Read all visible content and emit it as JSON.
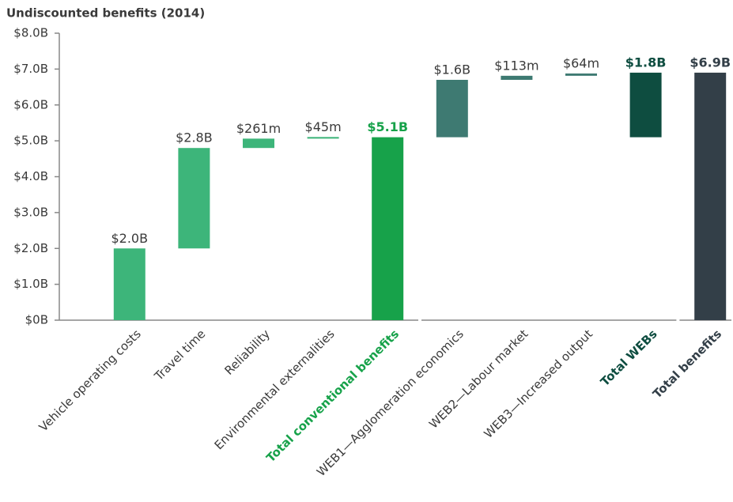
{
  "chart_data": {
    "type": "waterfall",
    "title": "Undiscounted benefits (2014)",
    "categories": [
      "Vehicle operating costs",
      "Travel time",
      "Reliability",
      "Environmental externalities",
      "Total conventional benefits",
      "WEB1—Agglomeration economics",
      "WEB2—Labour market",
      "WEB3—Increased output",
      "Total WEBs",
      "Total benefits"
    ],
    "values": [
      2.0,
      2.8,
      0.261,
      0.045,
      5.1,
      1.6,
      0.113,
      0.064,
      1.8,
      6.9
    ],
    "value_labels": [
      "$2.0B",
      "$2.8B",
      "$261m",
      "$45m",
      "$5.1B",
      "$1.6B",
      "$113m",
      "$64m",
      "$1.8B",
      "$6.9B"
    ],
    "measure": [
      "relative",
      "relative",
      "relative",
      "relative",
      "total",
      "relative",
      "relative",
      "relative",
      "subtotal",
      "total"
    ],
    "colors": [
      "#3db57a",
      "#3db57a",
      "#3db57a",
      "#3db57a",
      "#17a24a",
      "#3e7a72",
      "#3e7a72",
      "#3e7a72",
      "#0e4d40",
      "#333f48"
    ],
    "ylim": [
      0,
      8
    ],
    "yticks": [
      {
        "value": 0,
        "label": "$0B"
      },
      {
        "value": 1,
        "label": "$1.0B"
      },
      {
        "value": 2,
        "label": "$2.0B"
      },
      {
        "value": 3,
        "label": "$3.0B"
      },
      {
        "value": 4,
        "label": "$4.0B"
      },
      {
        "value": 5,
        "label": "$5.0B"
      },
      {
        "value": 6,
        "label": "$6.0B"
      },
      {
        "value": 7,
        "label": "$7.0B"
      },
      {
        "value": 8,
        "label": "$8.0B"
      }
    ]
  }
}
